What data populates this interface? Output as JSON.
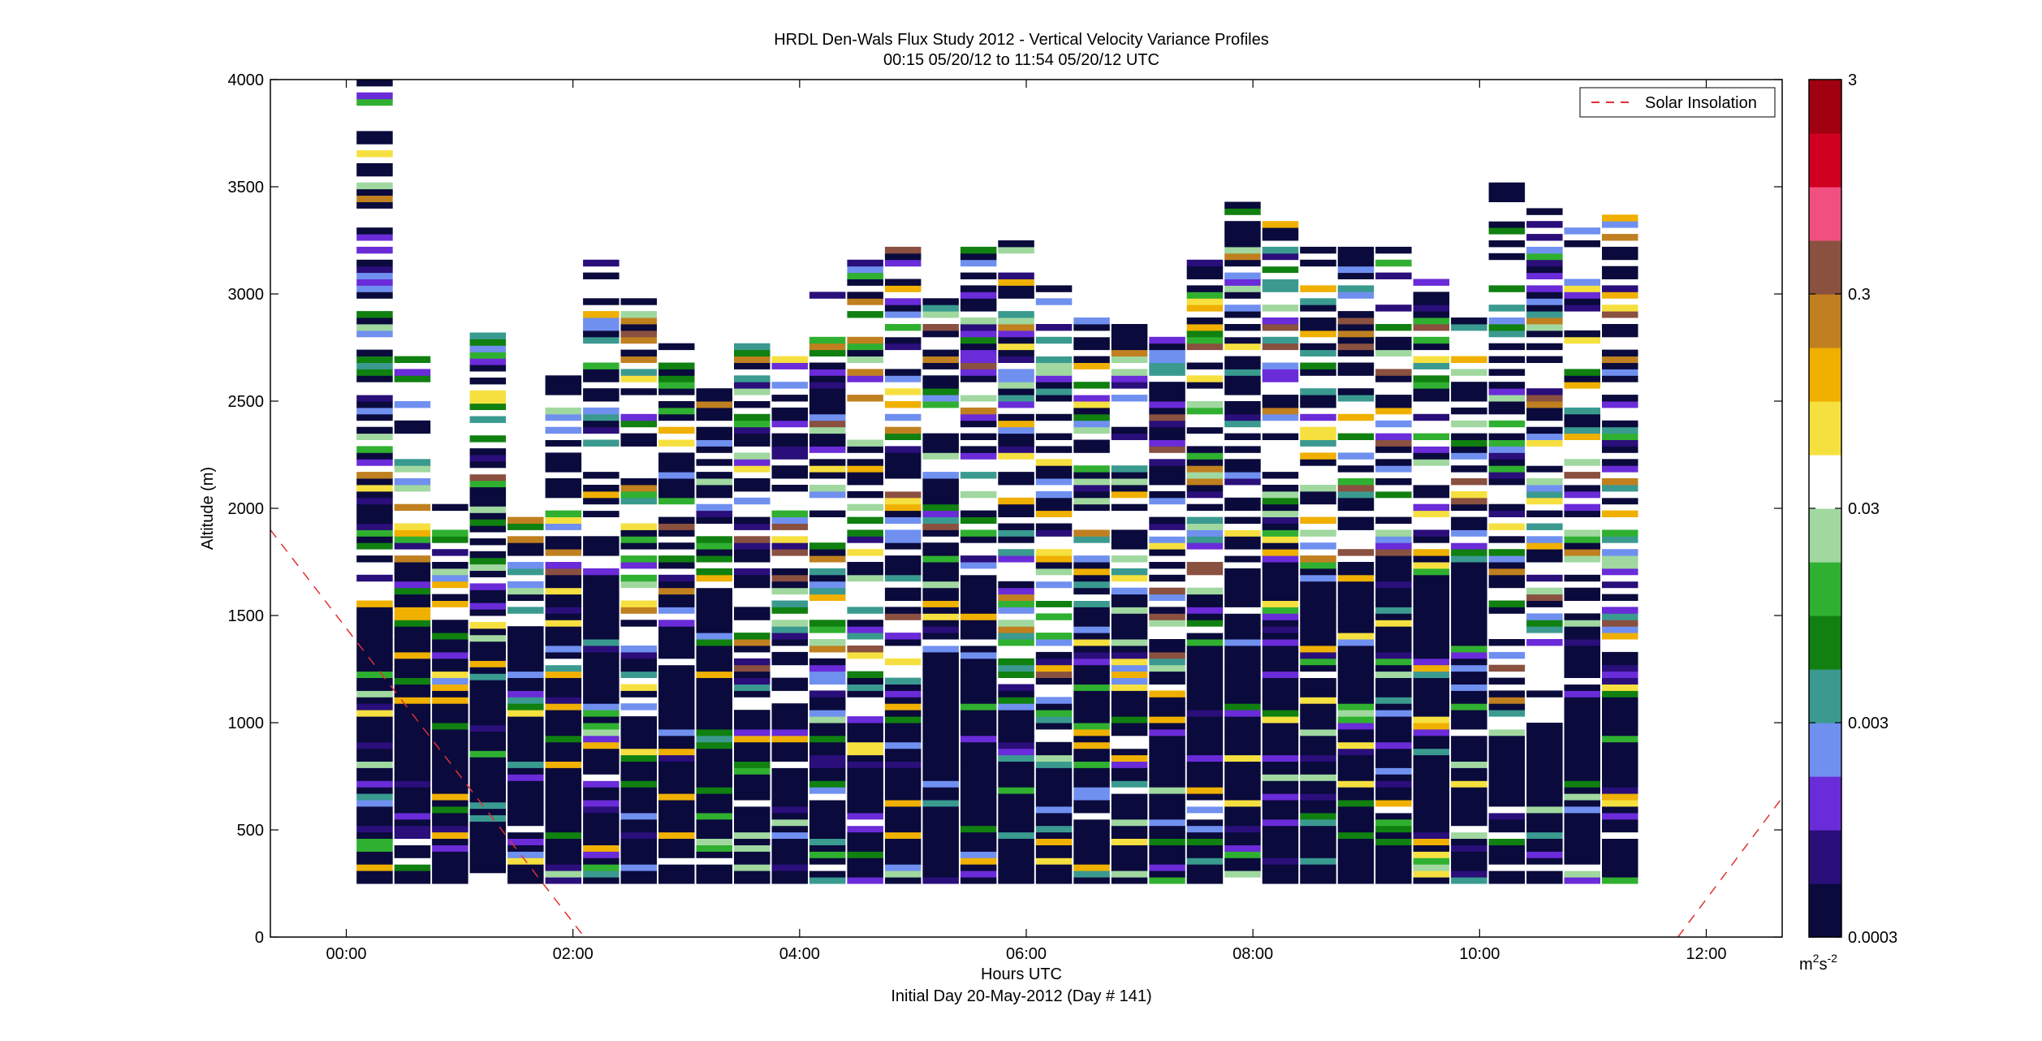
{
  "title": "HRDL Den-Wals Flux Study 2012 - Vertical Velocity Variance Profiles",
  "subtitle": "00:15 05/20/12 to 11:54 05/20/12  UTC",
  "chart_data": {
    "type": "heatmap",
    "title": "HRDL Den-Wals Flux Study 2012 - Vertical Velocity Variance Profiles",
    "subtitle": "00:15 05/20/12 to 11:54 05/20/12  UTC",
    "xlabel": "Hours UTC",
    "xlabel2": "Initial Day 20-May-2012 (Day # 141)",
    "ylabel": "Altitude (m)",
    "xlim_hours": [
      -0.67,
      12.67
    ],
    "ylim": [
      0,
      4000
    ],
    "x_ticks": [
      {
        "value": 0,
        "label": "00:00"
      },
      {
        "value": 2,
        "label": "02:00"
      },
      {
        "value": 4,
        "label": "04:00"
      },
      {
        "value": 6,
        "label": "06:00"
      },
      {
        "value": 8,
        "label": "08:00"
      },
      {
        "value": 10,
        "label": "10:00"
      },
      {
        "value": 12,
        "label": "12:00"
      }
    ],
    "y_ticks": [
      0,
      500,
      1000,
      1500,
      2000,
      2500,
      3000,
      3500,
      4000
    ],
    "grid": false,
    "colorbar": {
      "scale": "log",
      "range": [
        0.0003,
        3
      ],
      "tick_labels": [
        "3",
        "0.3",
        "0.03",
        "0.003",
        "0.0003"
      ],
      "tick_values": [
        3,
        0.3,
        0.03,
        0.003,
        0.0003
      ],
      "unit_label": "m",
      "unit_exp1": "2",
      "unit_mid": "s",
      "unit_exp2": "-2",
      "colors": [
        "#0a0a3c",
        "#2a0e7a",
        "#6a2bd8",
        "#7090f0",
        "#3a9a90",
        "#108010",
        "#30b030",
        "#a0d8a0",
        "#ffffff",
        "#f6e040",
        "#f0b000",
        "#c08020",
        "#8a5040",
        "#f05080",
        "#d00020",
        "#a00010"
      ]
    },
    "profile_hours_start": 0.25,
    "profile_hours_step": 0.333,
    "profile_tops_m": [
      4000,
      2700,
      2000,
      2800,
      1950,
      2600,
      3200,
      3000,
      2750,
      2550,
      2750,
      2700,
      3000,
      3150,
      3250,
      3000,
      3200,
      3250,
      3050,
      2900,
      2850,
      2800,
      3150,
      3450,
      3350,
      3250,
      3300,
      3200,
      3100,
      2900,
      3500,
      3400,
      3350,
      3400
    ],
    "profile_bases_m": [
      250,
      250,
      250,
      300,
      250,
      250,
      250,
      250,
      250,
      250,
      250,
      250,
      250,
      250,
      250,
      250,
      250,
      250,
      250,
      250,
      250,
      250,
      250,
      250,
      250,
      250,
      250,
      250,
      250,
      250,
      250,
      250,
      250,
      250
    ],
    "legend": {
      "label": "Solar Insolation",
      "position": "top-right",
      "color": "#e03030",
      "style": "dashed"
    },
    "solar_insolation_line": [
      {
        "x": -0.67,
        "y": 1900
      },
      {
        "x": 2.1,
        "y": 0
      },
      {
        "x": 11.75,
        "y": 0
      },
      {
        "x": 12.67,
        "y": 650
      }
    ]
  }
}
